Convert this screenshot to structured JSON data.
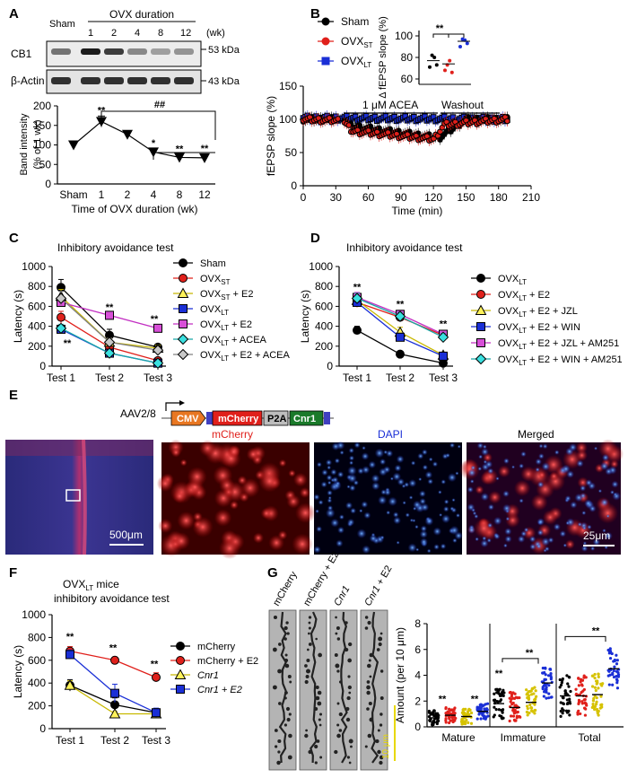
{
  "figure": {
    "panelA": {
      "letter": "A",
      "blot": {
        "sham_label": "Sham",
        "duration_label": "OVX duration",
        "weeks": [
          "1",
          "2",
          "4",
          "8",
          "12"
        ],
        "unit": "(wk)",
        "rows": [
          "CB1",
          "β-Actin"
        ],
        "kda": [
          "53 kDa",
          "43 kDa"
        ]
      },
      "sig": {
        "s1": "**",
        "s4": "*",
        "s8": "**",
        "s12": "**",
        "hash": "##"
      }
    },
    "panelB": {
      "letter": "B",
      "acea": "1 μM ACEA",
      "washout": "Washout",
      "inset_sig": "**"
    },
    "panelC": {
      "letter": "C",
      "title": "Inhibitory avoidance test",
      "sig": [
        "**",
        "**",
        "**"
      ]
    },
    "panelD": {
      "letter": "D",
      "title": "Inhibitory avoidance test",
      "sig": [
        "**",
        "**",
        "**"
      ]
    },
    "panelE": {
      "letter": "E",
      "aav": "AAV2/8",
      "construct": [
        "CMV",
        "mCherry",
        "P2A",
        "Cnr1"
      ],
      "titles": [
        "mCherry",
        "DAPI",
        "Merged"
      ],
      "scale_large": "500μm",
      "scale_small": "25μm"
    },
    "panelF": {
      "letter": "F",
      "title_line1": "OVX",
      "title_sub": "LT",
      "title_line1b": " mice",
      "title_line2": "inhibitory avoidance test",
      "sig": [
        "**",
        "**",
        "**"
      ]
    },
    "panelG": {
      "letter": "G",
      "images": [
        "mCherry",
        "mCherry + E2",
        "Cnr1",
        "Cnr1 + E2"
      ],
      "scale": "10 μm",
      "sig": [
        "**",
        "**",
        "**",
        "**",
        "**"
      ]
    }
  },
  "chart_data": [
    {
      "id": "A",
      "type": "line",
      "categories": [
        "Sham",
        "1",
        "2",
        "4",
        "8",
        "12"
      ],
      "values": [
        100,
        160,
        127,
        82,
        68,
        67
      ],
      "errors": [
        9,
        14,
        9,
        8,
        7,
        9
      ],
      "xlabel": "Time of OVX duration (wk)",
      "ylabel": "Band intensity (% of 1 wk)",
      "ylim": [
        0,
        200
      ],
      "yticks": [
        0,
        50,
        100,
        150,
        200
      ]
    },
    {
      "id": "B",
      "type": "scatter",
      "xlabel": "Time (min)",
      "ylabel": "fEPSP slope (%)",
      "xlim": [
        0,
        210
      ],
      "ylim": [
        0,
        150
      ],
      "xticks": [
        0,
        30,
        60,
        90,
        120,
        150,
        180,
        210
      ],
      "yticks": [
        0,
        50,
        100,
        150
      ],
      "series": [
        {
          "name": "Sham",
          "color": "#000000",
          "segments": [
            [
              0,
              100,
              28,
              100
            ],
            [
              38,
              100,
              43,
              90
            ],
            [
              43,
              90,
              125,
              72
            ],
            [
              125,
              72,
              150,
              100
            ],
            [
              150,
              100,
              188,
              100
            ]
          ]
        },
        {
          "name": "OVX",
          "sub": "ST",
          "color": "#e0201b",
          "segments": [
            [
              0,
              100,
              32,
              98
            ],
            [
              38,
              95,
              45,
              82
            ],
            [
              45,
              82,
              120,
              70
            ],
            [
              120,
              70,
              130,
              92
            ],
            [
              130,
              92,
              188,
              100
            ]
          ]
        },
        {
          "name": "OVX",
          "sub": "LT",
          "color": "#1a2fd6",
          "segments": [
            [
              0,
              102,
              188,
              100
            ]
          ]
        }
      ]
    },
    {
      "id": "B-inset",
      "type": "scatter",
      "ylabel": "Δ fEPSP slope (%)",
      "ylim": [
        55,
        105
      ],
      "yticks": [
        60,
        80,
        100
      ],
      "categories": [
        "Sham",
        "OVXST",
        "OVXLT"
      ],
      "means": [
        77,
        74,
        95
      ],
      "points": [
        [
          71,
          82,
          80,
          73
        ],
        [
          68,
          73,
          77,
          66
        ],
        [
          90,
          97,
          96,
          93
        ]
      ],
      "colors": [
        "#000000",
        "#e0201b",
        "#1a2fd6"
      ]
    },
    {
      "id": "C",
      "type": "line",
      "title": "Inhibitory avoidance test",
      "categories": [
        "Test 1",
        "Test 2",
        "Test 3"
      ],
      "ylabel": "Latency (s)",
      "ylim": [
        0,
        1000
      ],
      "yticks": [
        0,
        200,
        400,
        600,
        800,
        1000
      ],
      "series": [
        {
          "name": "Sham",
          "sub": "",
          "suffix": "",
          "values": [
            790,
            310,
            190
          ],
          "errors": [
            80,
            60,
            30
          ],
          "color": "#000000",
          "fill": "#000000",
          "marker": "circle"
        },
        {
          "name": "OVX",
          "sub": "ST",
          "suffix": "",
          "values": [
            490,
            190,
            55
          ],
          "errors": [
            60,
            30,
            10
          ],
          "color": "#e0201b",
          "fill": "#e0201b",
          "marker": "circle"
        },
        {
          "name": "OVX",
          "sub": "ST",
          "suffix": " + E2",
          "values": [
            700,
            240,
            180
          ],
          "errors": [
            70,
            40,
            30
          ],
          "color": "#c8b800",
          "fill": "#fff25a",
          "marker": "triangle"
        },
        {
          "name": "OVX",
          "sub": "LT",
          "suffix": "",
          "values": [
            370,
            130,
            30
          ],
          "errors": [
            40,
            20,
            10
          ],
          "color": "#1a2fd6",
          "fill": "#1a2fd6",
          "marker": "square"
        },
        {
          "name": "OVX",
          "sub": "LT",
          "suffix": " + E2",
          "values": [
            640,
            510,
            380
          ],
          "errors": [
            40,
            30,
            30
          ],
          "color": "#c22fc2",
          "fill": "#d84fd8",
          "marker": "square"
        },
        {
          "name": "OVX",
          "sub": "LT",
          "suffix": " + ACEA",
          "values": [
            380,
            130,
            30
          ],
          "errors": [
            40,
            20,
            10
          ],
          "color": "#18a8a8",
          "fill": "#3ae0e0",
          "marker": "diamond"
        },
        {
          "name": "OVX",
          "sub": "LT",
          "suffix": " + E2 + ACEA",
          "values": [
            680,
            240,
            160
          ],
          "errors": [
            70,
            40,
            30
          ],
          "color": "#808080",
          "fill": "#c8c8c8",
          "marker": "diamond"
        }
      ]
    },
    {
      "id": "D",
      "type": "line",
      "title": "Inhibitory avoidance test",
      "categories": [
        "Test 1",
        "Test 2",
        "Test 3"
      ],
      "ylabel": "Latency (s)",
      "ylim": [
        0,
        1000
      ],
      "yticks": [
        0,
        200,
        400,
        600,
        800,
        1000
      ],
      "series": [
        {
          "name": "OVX",
          "sub": "LT",
          "suffix": "",
          "values": [
            360,
            120,
            30
          ],
          "errors": [
            40,
            15,
            8
          ],
          "color": "#000000",
          "fill": "#000000",
          "marker": "circle"
        },
        {
          "name": "OVX",
          "sub": "LT",
          "suffix": " + E2",
          "values": [
            640,
            490,
            310
          ],
          "errors": [
            50,
            40,
            40
          ],
          "color": "#e0201b",
          "fill": "#e0201b",
          "marker": "circle"
        },
        {
          "name": "OVX",
          "sub": "LT",
          "suffix": " + E2 + JZL",
          "values": [
            660,
            340,
            110
          ],
          "errors": [
            50,
            50,
            30
          ],
          "color": "#c8b800",
          "fill": "#fff25a",
          "marker": "triangle"
        },
        {
          "name": "OVX",
          "sub": "LT",
          "suffix": " + E2 + WIN",
          "values": [
            640,
            290,
            100
          ],
          "errors": [
            40,
            40,
            30
          ],
          "color": "#1a2fd6",
          "fill": "#1a2fd6",
          "marker": "square"
        },
        {
          "name": "OVX",
          "sub": "LT",
          "suffix": " + E2 + JZL + AM251",
          "values": [
            690,
            520,
            320
          ],
          "errors": [
            50,
            40,
            40
          ],
          "color": "#c22fc2",
          "fill": "#d84fd8",
          "marker": "square"
        },
        {
          "name": "OVX",
          "sub": "LT",
          "suffix": " + E2 + WIN + AM251",
          "values": [
            680,
            500,
            290
          ],
          "errors": [
            50,
            40,
            40
          ],
          "color": "#18a8a8",
          "fill": "#3ae0e0",
          "marker": "diamond"
        }
      ]
    },
    {
      "id": "F",
      "type": "line",
      "categories": [
        "Test 1",
        "Test 2",
        "Test 3"
      ],
      "ylabel": "Latency (s)",
      "ylim": [
        0,
        1000
      ],
      "yticks": [
        0,
        200,
        400,
        600,
        800,
        1000
      ],
      "series": [
        {
          "name": "mCherry",
          "values": [
            380,
            210,
            140
          ],
          "errors": [
            50,
            60,
            30
          ],
          "color": "#000000",
          "fill": "#000000",
          "marker": "circle",
          "italic": false
        },
        {
          "name": "mCherry + E2",
          "values": [
            680,
            600,
            450
          ],
          "errors": [
            40,
            30,
            40
          ],
          "color": "#e0201b",
          "fill": "#e0201b",
          "marker": "circle",
          "italic": false
        },
        {
          "name": "Cnr1",
          "values": [
            380,
            130,
            130
          ],
          "errors": [
            40,
            20,
            20
          ],
          "color": "#c8b800",
          "fill": "#fff25a",
          "marker": "triangle",
          "italic": true
        },
        {
          "name": "Cnr1 + E2",
          "values": [
            650,
            310,
            140
          ],
          "errors": [
            40,
            80,
            40
          ],
          "color": "#1a2fd6",
          "fill": "#1a2fd6",
          "marker": "square",
          "italic": true
        }
      ]
    },
    {
      "id": "G",
      "type": "scatter",
      "ylabel": "Amount (per 10 μm)",
      "ylim": [
        0,
        8
      ],
      "yticks": [
        0,
        2,
        4,
        6,
        8
      ],
      "categories": [
        "Mature",
        "Immature",
        "Total"
      ],
      "group_colors": [
        "#000000",
        "#e0201b",
        "#d6c200",
        "#1a2fd6"
      ],
      "means": [
        [
          0.7,
          0.9,
          0.8,
          1.2
        ],
        [
          1.8,
          1.5,
          1.9,
          3.4
        ],
        [
          2.4,
          2.4,
          2.5,
          4.5
        ]
      ]
    }
  ]
}
